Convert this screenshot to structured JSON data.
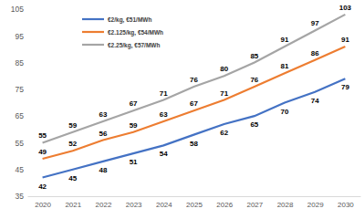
{
  "chart_data": {
    "type": "line",
    "categories": [
      "2020",
      "2021",
      "2022",
      "2023",
      "2024",
      "2025",
      "2026",
      "2027",
      "2028",
      "2029",
      "2030"
    ],
    "series": [
      {
        "name": "€2/kg, €51/MWh",
        "color": "#4472c4",
        "values": [
          42,
          45,
          48,
          51,
          54,
          58,
          62,
          65,
          70,
          74,
          79
        ]
      },
      {
        "name": "€2.125/kg, €54/MWh",
        "color": "#ed7d31",
        "values": [
          49,
          52,
          56,
          59,
          63,
          67,
          71,
          76,
          81,
          86,
          91
        ]
      },
      {
        "name": "€2.25/kg, €57/MWh",
        "color": "#a5a5a5",
        "values": [
          55,
          59,
          63,
          67,
          71,
          76,
          80,
          85,
          91,
          97,
          103
        ]
      }
    ],
    "ylim": [
      35,
      105
    ],
    "yticks": [
      35,
      45,
      55,
      65,
      75,
      85,
      95,
      105
    ],
    "grid": false,
    "legend": "top-left",
    "data_labels": true
  }
}
